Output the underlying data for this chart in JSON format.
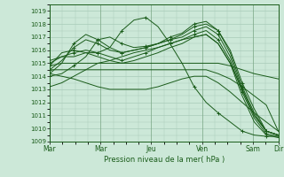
{
  "bg_color": "#cce8d8",
  "grid_color": "#a8cbb8",
  "line_color": "#1a5c1a",
  "xlabel": "Pression niveau de la mer( hPa )",
  "ylim": [
    1009,
    1019.5
  ],
  "yticks": [
    1009,
    1010,
    1011,
    1012,
    1013,
    1014,
    1015,
    1016,
    1017,
    1018,
    1019
  ],
  "xtick_labels": [
    "Mar",
    "Mar",
    "Jeu",
    "Ven",
    "Sam",
    "Dir"
  ],
  "xtick_positions": [
    0,
    2,
    4,
    6,
    8,
    9
  ],
  "num_days": 10,
  "series": [
    {
      "y": [
        1014.8,
        1015.8,
        1016.0,
        1015.8,
        1015.8,
        1016.2,
        1017.5,
        1018.3,
        1018.5,
        1017.8,
        1016.5,
        1015.0,
        1013.2,
        1012.0,
        1011.2,
        1010.5,
        1009.8,
        1009.5,
        1009.4,
        1009.4
      ],
      "marker": true
    },
    {
      "y": [
        1014.0,
        1014.2,
        1014.8,
        1015.5,
        1016.8,
        1017.0,
        1016.5,
        1016.2,
        1016.3,
        1016.5,
        1017.0,
        1017.3,
        1018.0,
        1018.2,
        1017.5,
        1016.0,
        1013.5,
        1011.5,
        1009.8,
        1009.5
      ],
      "marker": true
    },
    {
      "y": [
        1014.2,
        1015.0,
        1016.5,
        1017.2,
        1016.8,
        1016.2,
        1015.8,
        1016.0,
        1016.2,
        1016.5,
        1016.8,
        1017.2,
        1017.8,
        1018.0,
        1017.5,
        1015.8,
        1013.2,
        1011.2,
        1009.8,
        1009.5
      ],
      "marker": true
    },
    {
      "y": [
        1014.5,
        1015.2,
        1016.2,
        1016.8,
        1016.5,
        1016.0,
        1015.8,
        1016.0,
        1016.2,
        1016.5,
        1016.8,
        1017.0,
        1017.5,
        1017.8,
        1017.2,
        1015.5,
        1013.0,
        1011.0,
        1009.8,
        1009.5
      ],
      "marker": true
    },
    {
      "y": [
        1015.0,
        1015.5,
        1015.8,
        1016.0,
        1015.8,
        1015.5,
        1015.2,
        1015.5,
        1015.8,
        1016.2,
        1016.5,
        1016.8,
        1017.2,
        1017.5,
        1016.8,
        1015.2,
        1012.8,
        1010.8,
        1009.6,
        1009.4
      ],
      "marker": true
    },
    {
      "y": [
        1015.2,
        1015.5,
        1015.5,
        1015.8,
        1015.5,
        1015.2,
        1015.0,
        1015.2,
        1015.5,
        1015.8,
        1016.2,
        1016.5,
        1017.0,
        1017.2,
        1016.5,
        1015.0,
        1012.5,
        1010.5,
        1009.5,
        1009.3
      ],
      "marker": false
    },
    {
      "y": [
        1013.2,
        1013.5,
        1014.0,
        1014.5,
        1015.0,
        1015.2,
        1015.5,
        1015.8,
        1016.0,
        1016.2,
        1016.5,
        1016.8,
        1017.0,
        1017.2,
        1016.5,
        1015.0,
        1013.0,
        1011.0,
        1009.8,
        1009.5
      ],
      "marker": false
    },
    {
      "y": [
        1014.8,
        1015.0,
        1015.0,
        1015.0,
        1015.0,
        1015.0,
        1015.0,
        1015.0,
        1015.0,
        1015.0,
        1015.0,
        1015.0,
        1015.0,
        1015.0,
        1015.0,
        1014.8,
        1014.5,
        1014.2,
        1014.0,
        1013.8
      ],
      "marker": false
    },
    {
      "y": [
        1014.5,
        1014.5,
        1014.5,
        1014.5,
        1014.5,
        1014.5,
        1014.5,
        1014.5,
        1014.5,
        1014.5,
        1014.5,
        1014.5,
        1014.5,
        1014.5,
        1014.2,
        1013.8,
        1013.2,
        1012.5,
        1011.8,
        1009.8
      ],
      "marker": false
    },
    {
      "y": [
        1014.2,
        1014.0,
        1013.8,
        1013.5,
        1013.2,
        1013.0,
        1013.0,
        1013.0,
        1013.0,
        1013.2,
        1013.5,
        1013.8,
        1014.0,
        1014.0,
        1013.5,
        1012.8,
        1012.0,
        1011.2,
        1010.5,
        1009.8
      ],
      "marker": false
    }
  ]
}
